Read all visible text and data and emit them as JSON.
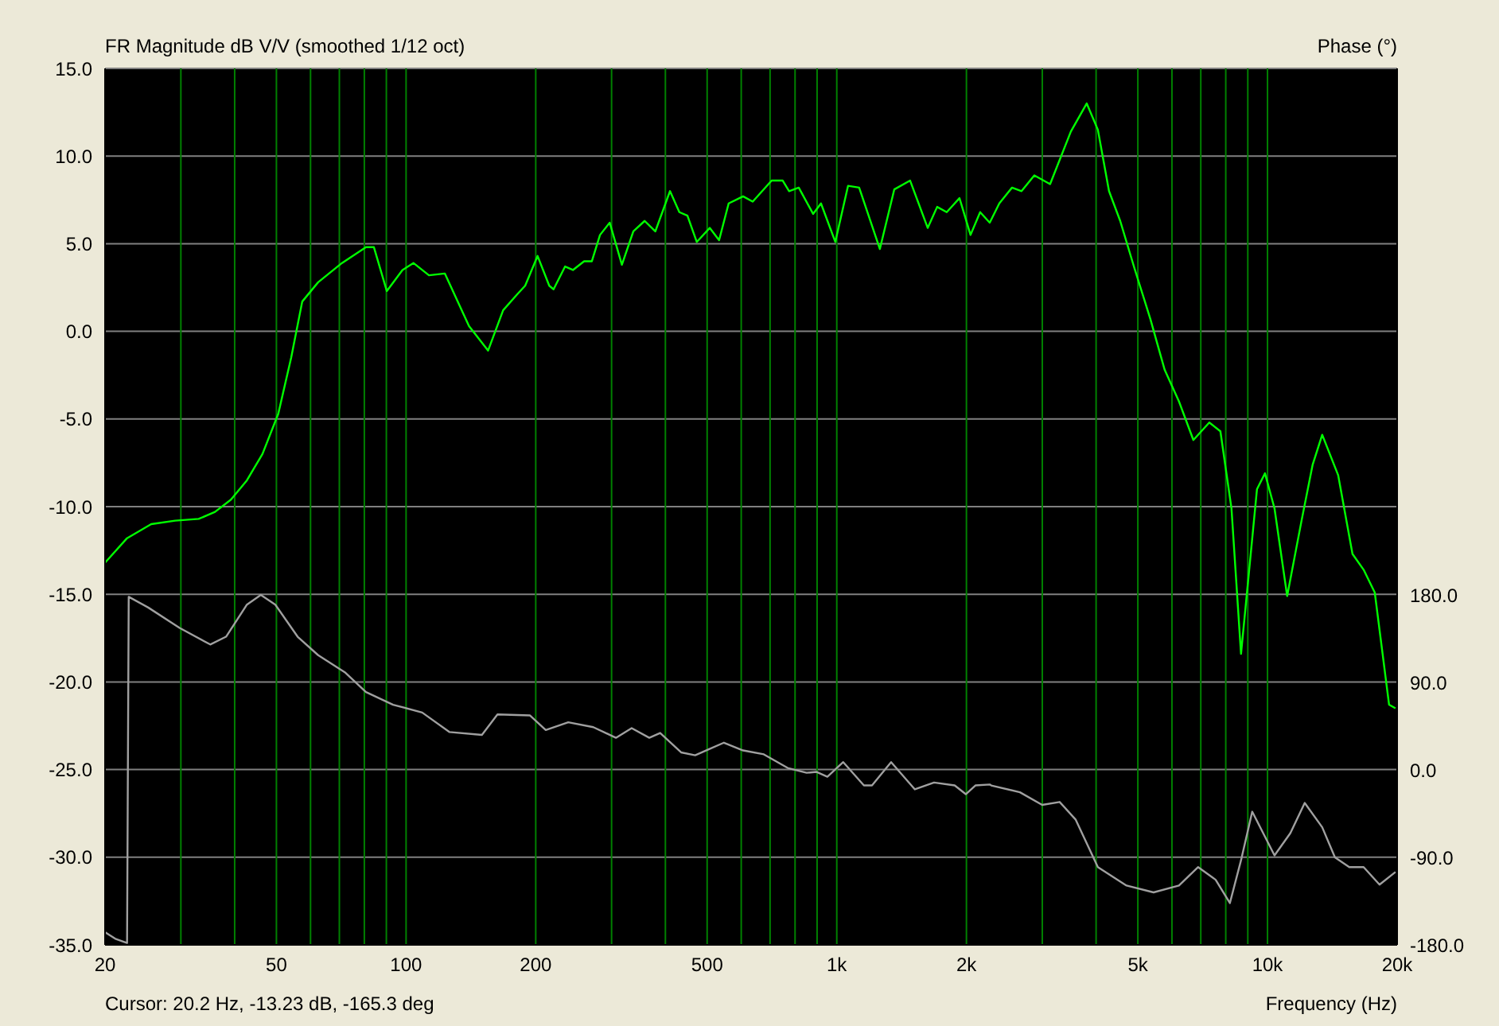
{
  "chart_data": {
    "type": "line",
    "title": "FR Magnitude dB V/V (smoothed 1/12 oct)",
    "xlabel": "Frequency (Hz)",
    "y2label": "Phase (°)",
    "annotations": [
      "Cursor: 20.2 Hz, -13.23 dB, -165.3 deg"
    ],
    "log": "x",
    "grid": true,
    "marker": "none",
    "line_style": "solid",
    "xlim": [
      20,
      20000
    ],
    "xticks": [
      20,
      {
        "value": 30,
        "label": null
      },
      {
        "value": 40,
        "label": null
      },
      50,
      {
        "value": 60,
        "label": null
      },
      {
        "value": 70,
        "label": null
      },
      {
        "value": 80,
        "label": null
      },
      {
        "value": 90,
        "label": null
      },
      100,
      200,
      {
        "value": 300,
        "label": null
      },
      {
        "value": 400,
        "label": null
      },
      500,
      {
        "value": 600,
        "label": null
      },
      {
        "value": 700,
        "label": null
      },
      {
        "value": 800,
        "label": null
      },
      {
        "value": 900,
        "label": null
      },
      {
        "value": 1000,
        "label": "1k"
      },
      {
        "value": 2000,
        "label": "2k"
      },
      {
        "value": 3000,
        "label": null
      },
      {
        "value": 4000,
        "label": null
      },
      {
        "value": 5000,
        "label": "5k"
      },
      {
        "value": 6000,
        "label": null
      },
      {
        "value": 7000,
        "label": null
      },
      {
        "value": 8000,
        "label": null
      },
      {
        "value": 9000,
        "label": null
      },
      {
        "value": 10000,
        "label": "10k"
      },
      {
        "value": 20000,
        "label": "20k"
      }
    ],
    "ylim": [
      -35,
      15
    ],
    "yticks": [
      {
        "value": -35,
        "label": "-35.0"
      },
      {
        "value": -30,
        "label": "-30.0"
      },
      {
        "value": -25,
        "label": "-25.0"
      },
      {
        "value": -20,
        "label": "-20.0"
      },
      {
        "value": -15,
        "label": "-15.0"
      },
      {
        "value": -10,
        "label": "-10.0"
      },
      {
        "value": -5,
        "label": "-5.0"
      },
      {
        "value": 0,
        "label": "0.0"
      },
      {
        "value": 5,
        "label": "5.0"
      },
      {
        "value": 10,
        "label": "10.0"
      },
      {
        "value": 15,
        "label": "15.0"
      }
    ],
    "y2lim": [
      -180,
      721.6
    ],
    "y2ticks": [
      {
        "value": -180,
        "label": "-180.0"
      },
      {
        "value": -90,
        "label": "-90.0"
      },
      {
        "value": 0,
        "label": "0.0"
      },
      {
        "value": 90,
        "label": "90.0"
      },
      {
        "value": 180,
        "label": "180.0"
      }
    ],
    "series": [
      {
        "color": "#00ff00",
        "x": [
          20,
          22.5,
          25.6,
          29.1,
          33,
          36,
          39.2,
          42.7,
          46.4,
          50.5,
          54.1,
          57.4,
          62.5,
          71,
          80.7,
          84.2,
          90.2,
          98.1,
          104,
          113,
          123,
          140,
          155,
          168,
          181,
          189,
          202,
          215,
          220,
          234,
          244,
          259,
          270,
          282,
          297,
          317,
          337,
          358,
          379,
          410,
          431,
          450,
          473,
          507,
          533,
          561,
          606,
          638,
          706,
          749,
          775,
          816,
          881,
          919,
          992,
          1062,
          1127,
          1259,
          1360,
          1480,
          1626,
          1710,
          1800,
          1927,
          2044,
          2152,
          2265,
          2384,
          2552,
          2685,
          2875,
          3128,
          3495,
          3804,
          4038,
          4286,
          4550,
          4910,
          5346,
          5772,
          6230,
          6728,
          7326,
          7774,
          8248,
          8680,
          9060,
          9454,
          9866,
          10382,
          11108,
          11996,
          12732,
          13398,
          14588,
          15752,
          16718,
          17744,
          19156,
          19820
        ],
        "values": [
          -13.2,
          -11.8,
          -11.0,
          -10.8,
          -10.7,
          -10.3,
          -9.6,
          -8.5,
          -7.0,
          -4.7,
          -1.5,
          1.7,
          2.8,
          3.9,
          4.8,
          4.8,
          2.3,
          3.5,
          3.9,
          3.2,
          3.3,
          0.3,
          -1.1,
          1.2,
          2.1,
          2.6,
          4.3,
          2.6,
          2.4,
          3.7,
          3.5,
          4.0,
          4.0,
          5.5,
          6.2,
          3.8,
          5.7,
          6.3,
          5.7,
          8.0,
          6.8,
          6.6,
          5.1,
          5.9,
          5.2,
          7.3,
          7.7,
          7.4,
          8.6,
          8.6,
          8.0,
          8.2,
          6.7,
          7.3,
          5.1,
          8.3,
          8.2,
          4.7,
          8.1,
          8.6,
          5.9,
          7.1,
          6.8,
          7.6,
          5.5,
          6.8,
          6.2,
          7.3,
          8.2,
          8.0,
          8.9,
          8.4,
          11.4,
          13.0,
          11.5,
          8.0,
          6.3,
          3.6,
          0.7,
          -2.2,
          -4.0,
          -6.2,
          -5.2,
          -5.7,
          -10.1,
          -18.4,
          -13.7,
          -9.0,
          -8.1,
          -10.1,
          -15.1,
          -10.8,
          -7.6,
          -5.9,
          -8.2,
          -12.7,
          -13.6,
          -14.9,
          -21.3,
          -21.5
        ]
      },
      {
        "color": "#a0a0a0",
        "axis": "y2",
        "x": [
          20,
          21.2,
          22.5,
          22.7,
          25.2,
          29.8,
          35.1,
          38.2,
          42.7,
          46,
          49.7,
          56,
          62.5,
          72.3,
          80.7,
          93.3,
          109,
          126,
          150,
          163,
          194,
          211,
          238,
          272,
          307,
          334,
          367,
          389,
          435,
          469,
          503,
          547,
          606,
          677,
          769,
          851,
          896,
          951,
          1035,
          1156,
          1207,
          1337,
          1518,
          1682,
          1878,
          1993,
          2098,
          2265,
          2284,
          2662,
          2998,
          3292,
          3584,
          4038,
          4706,
          5438,
          6230,
          6902,
          7578,
          8178,
          8680,
          9216,
          10382,
          11300,
          12202,
          13398,
          14342,
          15486,
          16718,
          18202,
          19820
        ],
        "values": [
          -167,
          -174,
          -178,
          178,
          167,
          146,
          129,
          137,
          170,
          180,
          170,
          137,
          118,
          100,
          80,
          67,
          59,
          39,
          36,
          57,
          56,
          41,
          49,
          44,
          33,
          43,
          33,
          38,
          18,
          15,
          21,
          28,
          20,
          16,
          2,
          -3,
          -2,
          -7,
          8,
          -16,
          -16,
          8,
          -20,
          -13,
          -16,
          -25,
          -16,
          -15,
          -16,
          -23,
          -36,
          -33,
          -51,
          -100,
          -119,
          -126,
          -119,
          -100,
          -113,
          -137,
          -93,
          -43,
          -88,
          -65,
          -34,
          -59,
          -90,
          -100,
          -100,
          -118,
          -105
        ]
      }
    ]
  }
}
